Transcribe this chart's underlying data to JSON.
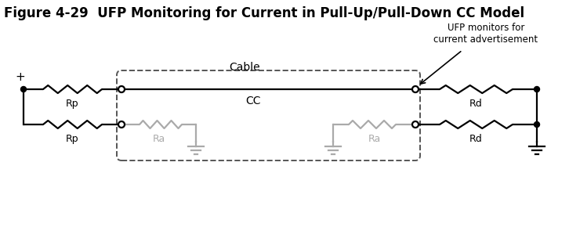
{
  "title": "Figure 4-29  UFP Monitoring for Current in Pull-Up/Pull-Down CC Model",
  "title_fontsize": 12,
  "bg_color": "#ffffff",
  "line_color": "#000000",
  "gray_color": "#aaaaaa",
  "annotation_text": "UFP monitors for\ncurrent advertisement",
  "label_Rp1": "Rp",
  "label_Rp2": "Rp",
  "label_Rd1": "Rd",
  "label_Rd2": "Rd",
  "label_Ra1": "Ra",
  "label_Ra2": "Ra",
  "label_CC": "CC",
  "label_Cable": "Cable",
  "label_plus": "+"
}
